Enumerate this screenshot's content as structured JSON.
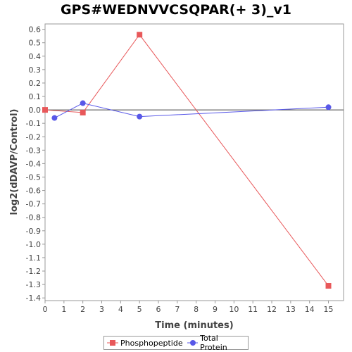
{
  "chart_data": {
    "type": "line",
    "title": "GPS#WEDNVVCSQPAR(+ 3)_v1",
    "xlabel": "Time (minutes)",
    "ylabel": "log2(dDAVP/Control)",
    "xlim": [
      0,
      15.8
    ],
    "ylim": [
      -1.42,
      0.64
    ],
    "xticks": [
      0,
      1,
      2,
      3,
      4,
      5,
      6,
      7,
      8,
      9,
      10,
      11,
      12,
      13,
      14,
      15
    ],
    "yticks": [
      0.6,
      0.5,
      0.4,
      0.3,
      0.2,
      0.1,
      0.0,
      -0.1,
      -0.2,
      -0.3,
      -0.4,
      -0.5,
      -0.6,
      -0.7,
      -0.8,
      -0.9,
      -1.0,
      -1.1,
      -1.2,
      -1.3,
      -1.4
    ],
    "ytick_labels": [
      "0.6",
      "0.5",
      "0.4",
      "0.3",
      "0.2",
      "0.1",
      "0.0",
      "-0.1",
      "-0.2",
      "-0.3",
      "-0.4",
      "-0.5",
      "-0.6",
      "-0.7",
      "-0.8",
      "-0.9",
      "-1.0",
      "-1.1",
      "-1.2",
      "-1.3",
      "-1.4"
    ],
    "zero_line": true,
    "grid": false,
    "legend_position": "bottom",
    "series": [
      {
        "name": "Phosphopeptide",
        "color": "#e8585a",
        "marker": "square",
        "x": [
          0,
          2,
          5,
          15
        ],
        "y": [
          0.0,
          -0.02,
          0.56,
          -1.31
        ]
      },
      {
        "name": "Total Protein",
        "color": "#5858e8",
        "marker": "circle",
        "x": [
          0.5,
          2,
          5,
          15
        ],
        "y": [
          -0.06,
          0.05,
          -0.05,
          0.02
        ]
      }
    ]
  }
}
